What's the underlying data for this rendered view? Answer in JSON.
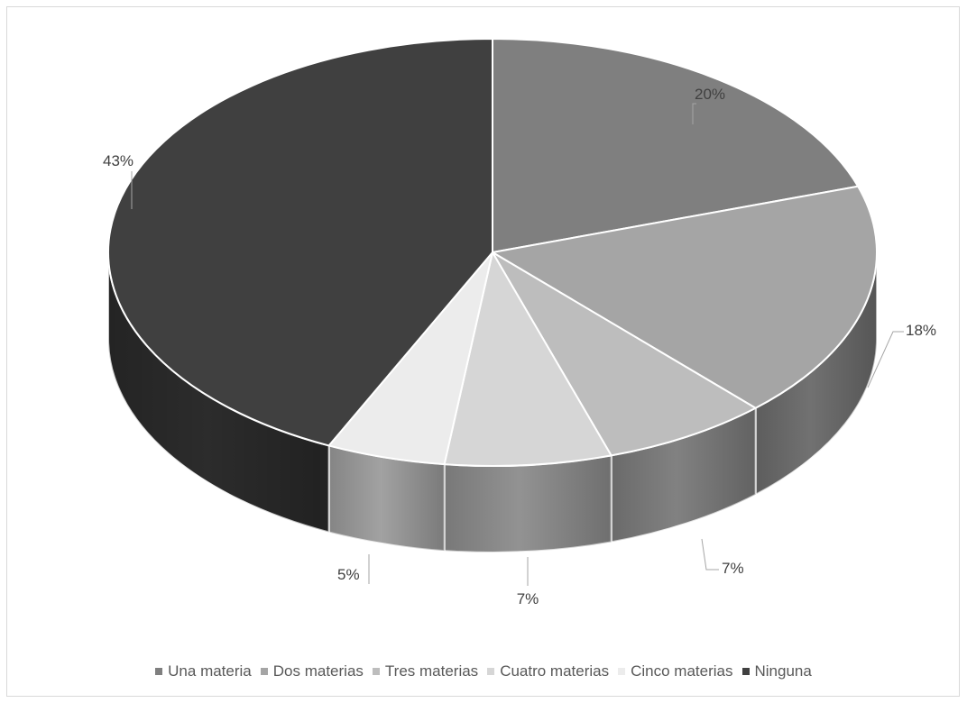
{
  "chart_data": {
    "type": "pie",
    "style": "3d",
    "title": "",
    "categories": [
      "Una materia",
      "Dos materias",
      "Tres materias",
      "Cuatro materias",
      "Cinco materias",
      "Ninguna"
    ],
    "values": [
      20,
      18,
      7,
      7,
      5,
      43
    ],
    "data_labels": [
      "20%",
      "18%",
      "7%",
      "7%",
      "5%",
      "43%"
    ],
    "colors": [
      "#7f7f7f",
      "#a5a5a5",
      "#bdbdbd",
      "#d6d6d6",
      "#ececec",
      "#404040"
    ],
    "legend_position": "bottom"
  }
}
